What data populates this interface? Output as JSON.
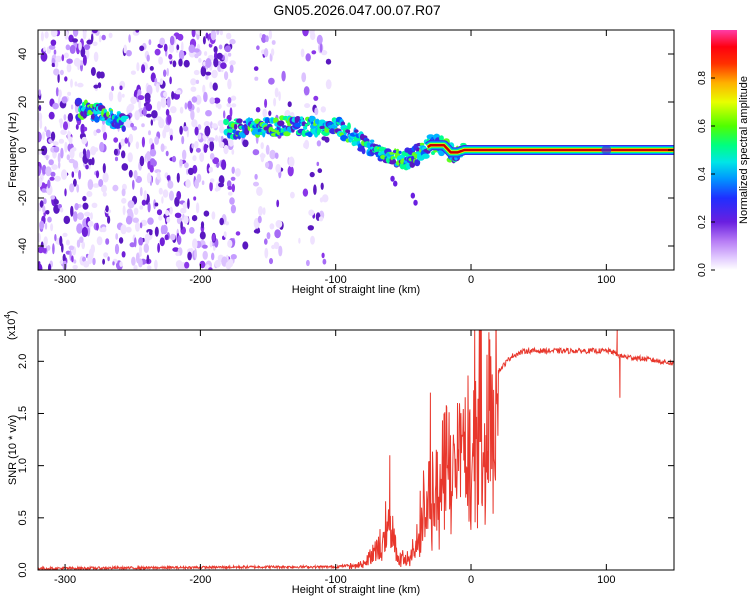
{
  "title": "GN05.2026.047.00.07.R07",
  "colors": {
    "snr_line": "#e8372c",
    "spectrogram_trace": "#cc0000",
    "noise_base": "#7a2cf0",
    "colormap": [
      "#ffffff",
      "#d9b8ff",
      "#8a2be2",
      "#3a2be8",
      "#0060ff",
      "#00c8ff",
      "#00ffb0",
      "#40ff40",
      "#e0ff00",
      "#ffb000",
      "#ff4000",
      "#ff0000",
      "#ff3cb4"
    ]
  },
  "chart_data": [
    {
      "type": "heatmap",
      "name": "spectrogram",
      "title": "GN05.2026.047.00.07.R07",
      "xlabel": "Height of straight line (km)",
      "ylabel": "Frequency (Hz)",
      "xlim": [
        -320,
        150
      ],
      "ylim": [
        -50,
        50
      ],
      "xticks": [
        -300,
        -200,
        -100,
        0,
        100
      ],
      "xtick_labels": [
        "-300",
        "-200",
        "-100",
        "0",
        "100"
      ],
      "yticks": [
        -40,
        -20,
        0,
        20,
        40
      ],
      "ytick_labels": [
        "-40",
        "-20",
        "0",
        "20",
        "40"
      ],
      "frequency_track": {
        "x": [
          -285,
          -275,
          -265,
          -255,
          -180,
          -160,
          -140,
          -120,
          -100,
          -90,
          -80,
          -70,
          -60,
          -50,
          -40,
          -30,
          -20,
          -15,
          -10,
          -5,
          0,
          100,
          150
        ],
        "y": [
          17,
          15,
          13,
          12,
          9,
          9,
          10,
          10,
          10,
          7,
          3,
          0,
          -2,
          -4,
          -2,
          2,
          2,
          -1,
          -1,
          0,
          0,
          0,
          0
        ]
      },
      "colorbar": {
        "label": "Normalized spectral amplitude",
        "range": [
          0,
          1
        ],
        "ticks": [
          0.0,
          0.2,
          0.4,
          0.6,
          0.8
        ],
        "tick_labels": [
          "0.0",
          "0.2",
          "0.4",
          "0.6",
          "0.8"
        ]
      }
    },
    {
      "type": "line",
      "name": "snr",
      "xlabel": "Height of straight line (km)",
      "ylabel": "SNR (10 * v/v)",
      "scale_label": "(x10",
      "scale_exponent": "4",
      "scale_close": ")",
      "xlim": [
        -320,
        150
      ],
      "ylim": [
        0,
        23000
      ],
      "xticks": [
        -300,
        -200,
        -100,
        0,
        100
      ],
      "xtick_labels": [
        "-300",
        "-200",
        "-100",
        "0",
        "100"
      ],
      "yticks": [
        0,
        5000,
        10000,
        15000,
        20000
      ],
      "ytick_labels": [
        "0.0",
        "0.5",
        "1.0",
        "1.5",
        "2.0"
      ],
      "envelope": {
        "x": [
          -320,
          -250,
          -200,
          -150,
          -120,
          -100,
          -80,
          -75,
          -65,
          -60,
          -55,
          -50,
          -45,
          -40,
          -35,
          -30,
          -25,
          -20,
          -15,
          -10,
          -5,
          0,
          10,
          20,
          30,
          40,
          50,
          80,
          100,
          105,
          110,
          130,
          150
        ],
        "y": [
          150,
          200,
          250,
          300,
          300,
          300,
          600,
          1500,
          4000,
          5500,
          1500,
          1200,
          1500,
          3500,
          7000,
          8000,
          7500,
          10000,
          12000,
          14000,
          13000,
          16000,
          16500,
          19000,
          20500,
          21000,
          21000,
          21000,
          21000,
          20900,
          20500,
          20200,
          19800
        ]
      },
      "spikes": [
        {
          "x": -60,
          "y": 11000
        },
        {
          "x": -30,
          "y": 17000
        },
        {
          "x": -20,
          "y": 15000
        },
        {
          "x": -10,
          "y": 16000
        },
        {
          "x": 108,
          "y": 23000
        },
        {
          "x": 110,
          "y": 16500
        }
      ]
    }
  ]
}
